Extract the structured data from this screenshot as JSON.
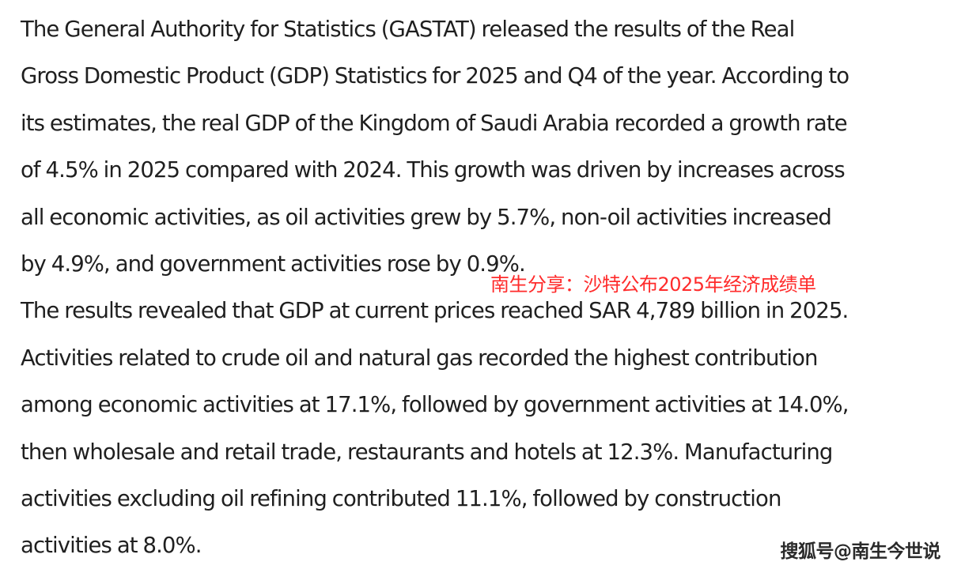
{
  "article": {
    "paragraph_1": [
      "The General Authority for Statistics (GASTAT) released the results of the Real",
      "Gross Domestic Product (GDP) Statistics for 2025 and Q4 of the year. According to",
      "its estimates, the real GDP of the Kingdom of Saudi Arabia recorded a growth rate",
      "of 4.5% in 2025 compared with 2024. This growth was driven by increases across",
      "all economic activities, as oil activities grew by 5.7%, non-oil activities increased",
      "by 4.9%, and government activities rose by 0.9%."
    ],
    "paragraph_2": [
      "The results revealed that GDP at current prices reached SAR 4,789 billion in 2025.",
      "Activities related to crude oil and natural gas recorded the highest contribution",
      "among economic activities at 17.1%, followed by government activities at 14.0%,",
      "then wholesale and retail trade, restaurants and hotels at 12.3%. Manufacturing",
      "activities excluding oil refining contributed 11.1%, followed by construction",
      "activities at 8.0%."
    ]
  },
  "overlay_caption": "南生分享：沙特公布2025年经济成绩单",
  "watermark": "搜狐号@南生今世说",
  "colors": {
    "text": "#1f1f1f",
    "caption": "#ff2b2b",
    "watermark": "#2a2a2a",
    "background": "#ffffff"
  }
}
